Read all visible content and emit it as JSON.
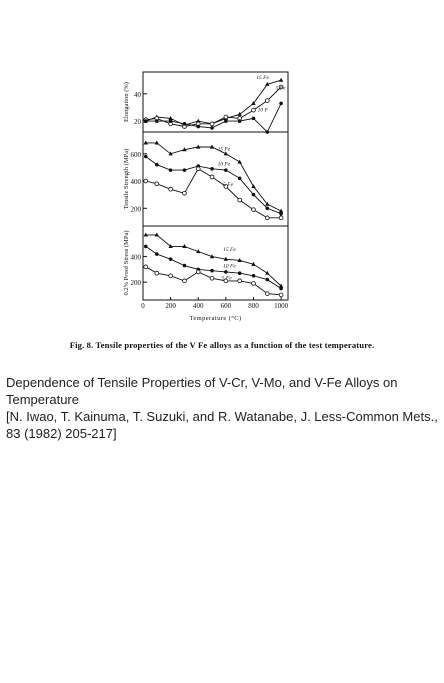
{
  "figure": {
    "caption": "Fig. 8. Tensile properties of the V  Fe alloys as a function of the test temperature.",
    "xlabel": "Temperature   (°C)",
    "xticks": [
      "0",
      "200",
      "400",
      "600",
      "800",
      "1000"
    ]
  },
  "description": {
    "title": "Dependence of Tensile Properties of V-Cr, V-Mo, and V-Fe Alloys on Temperature",
    "citation": "[N. Iwao, T. Kainuma, T. Suzuki, and R. Watanabe, J. Less-Common Mets., 83 (1982) 205-217]"
  },
  "chart_data": [
    {
      "type": "line",
      "ylabel": "Elongation (%)",
      "ylim": [
        12,
        56
      ],
      "yticks": [
        20,
        40
      ],
      "xlim": [
        0,
        1050
      ],
      "series": [
        {
          "name": "15 Fe",
          "marker": "triangle",
          "x": [
            20,
            100,
            200,
            300,
            400,
            500,
            600,
            700,
            800,
            900,
            1000
          ],
          "y": [
            20,
            23,
            22,
            17,
            20,
            18,
            22,
            25,
            33,
            47,
            50
          ]
        },
        {
          "name": "5 Fe",
          "marker": "open-circle",
          "x": [
            20,
            100,
            200,
            300,
            400,
            500,
            600,
            700,
            800,
            900,
            1000
          ],
          "y": [
            21,
            22,
            18,
            16,
            18,
            18,
            23,
            22,
            28,
            35,
            45
          ]
        },
        {
          "name": "10 Fe",
          "marker": "filled-circle",
          "x": [
            20,
            100,
            200,
            300,
            400,
            500,
            600,
            700,
            800,
            900,
            1000
          ],
          "y": [
            20,
            20,
            20,
            18,
            16,
            15,
            20,
            20,
            22,
            12,
            33
          ]
        }
      ],
      "labels": [
        {
          "text": "15 Fe",
          "x": 820,
          "y": 51
        },
        {
          "text": "5 Fe",
          "x": 960,
          "y": 43
        },
        {
          "text": "10 F",
          "x": 830,
          "y": 27
        }
      ]
    },
    {
      "type": "line",
      "ylabel": "Tensile Strength (MPa)",
      "ylim": [
        70,
        760
      ],
      "yticks": [
        200,
        400,
        600
      ],
      "xlim": [
        0,
        1050
      ],
      "series": [
        {
          "name": "15 Fe",
          "marker": "triangle",
          "x": [
            20,
            100,
            200,
            300,
            400,
            500,
            600,
            700,
            800,
            900,
            1000
          ],
          "y": [
            680,
            680,
            600,
            630,
            650,
            650,
            600,
            540,
            360,
            230,
            180
          ]
        },
        {
          "name": "10 Fe",
          "marker": "filled-circle",
          "x": [
            20,
            100,
            200,
            300,
            400,
            500,
            600,
            700,
            800,
            900,
            1000
          ],
          "y": [
            580,
            520,
            480,
            480,
            510,
            490,
            480,
            420,
            300,
            200,
            160
          ]
        },
        {
          "name": "5 Fe",
          "marker": "open-circle",
          "x": [
            20,
            100,
            200,
            300,
            400,
            500,
            600,
            700,
            800,
            900,
            1000
          ],
          "y": [
            400,
            380,
            340,
            310,
            490,
            430,
            360,
            260,
            190,
            130,
            130
          ]
        }
      ],
      "labels": [
        {
          "text": "15 Fe",
          "x": 540,
          "y": 625
        },
        {
          "text": "10 Fe",
          "x": 540,
          "y": 515
        },
        {
          "text": "5 Fe",
          "x": 580,
          "y": 365
        }
      ]
    },
    {
      "type": "line",
      "ylabel": "0.2% Proof Stress (MPa)",
      "ylim": [
        60,
        640
      ],
      "yticks": [
        200,
        400
      ],
      "xlim": [
        0,
        1050
      ],
      "series": [
        {
          "name": "15 Fe",
          "marker": "triangle",
          "x": [
            20,
            100,
            200,
            300,
            400,
            500,
            600,
            700,
            800,
            900,
            1000
          ],
          "y": [
            570,
            570,
            480,
            480,
            440,
            400,
            380,
            370,
            340,
            270,
            170
          ]
        },
        {
          "name": "10 Fe",
          "marker": "filled-circle",
          "x": [
            20,
            100,
            200,
            300,
            400,
            500,
            600,
            700,
            800,
            900,
            1000
          ],
          "y": [
            480,
            420,
            380,
            330,
            300,
            290,
            280,
            270,
            250,
            220,
            150
          ]
        },
        {
          "name": "5 Fe",
          "marker": "open-circle",
          "x": [
            20,
            100,
            200,
            300,
            400,
            500,
            600,
            700,
            800,
            900,
            1000
          ],
          "y": [
            320,
            270,
            250,
            210,
            280,
            230,
            210,
            210,
            190,
            110,
            100
          ]
        }
      ],
      "labels": [
        {
          "text": "15 Fe",
          "x": 580,
          "y": 445
        },
        {
          "text": "10 Fe",
          "x": 580,
          "y": 315
        },
        {
          "text": "5 Fe",
          "x": 570,
          "y": 220
        }
      ]
    }
  ]
}
